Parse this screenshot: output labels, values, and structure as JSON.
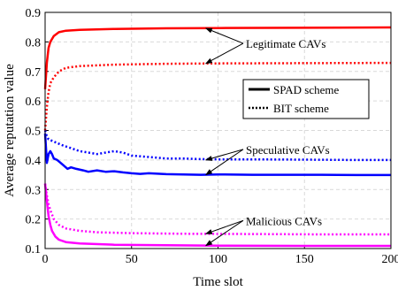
{
  "chart_data": {
    "type": "line",
    "xlabel": "Time slot",
    "ylabel": "Average reputation value",
    "xlim": [
      0,
      200
    ],
    "ylim": [
      0.1,
      0.9
    ],
    "xticks": [
      0,
      50,
      100,
      150,
      200
    ],
    "yticks": [
      0.1,
      0.2,
      0.3,
      0.4,
      0.5,
      0.6,
      0.7,
      0.8,
      0.9
    ],
    "grid": true,
    "legend": {
      "placement": "right-middle",
      "entries": [
        {
          "label": "SPAD scheme",
          "style": "solid"
        },
        {
          "label": "BIT scheme",
          "style": "dotted"
        }
      ]
    },
    "colors": {
      "legitimate": "#ff0000",
      "speculative": "#0000ff",
      "malicious": "#ff00ff"
    },
    "series": [
      {
        "group": "legitimate",
        "scheme": "SPAD",
        "color": "#ff0000",
        "style": "solid",
        "points": [
          [
            0,
            0.64
          ],
          [
            1,
            0.73
          ],
          [
            2,
            0.78
          ],
          [
            3,
            0.8
          ],
          [
            5,
            0.82
          ],
          [
            8,
            0.833
          ],
          [
            12,
            0.838
          ],
          [
            20,
            0.841
          ],
          [
            40,
            0.844
          ],
          [
            70,
            0.846
          ],
          [
            100,
            0.847
          ],
          [
            150,
            0.848
          ],
          [
            200,
            0.849
          ]
        ]
      },
      {
        "group": "legitimate",
        "scheme": "BIT",
        "color": "#ff0000",
        "style": "dotted",
        "points": [
          [
            0,
            0.5
          ],
          [
            1,
            0.58
          ],
          [
            2,
            0.63
          ],
          [
            3,
            0.66
          ],
          [
            5,
            0.68
          ],
          [
            8,
            0.7
          ],
          [
            12,
            0.712
          ],
          [
            20,
            0.718
          ],
          [
            40,
            0.723
          ],
          [
            70,
            0.726
          ],
          [
            100,
            0.727
          ],
          [
            150,
            0.728
          ],
          [
            200,
            0.729
          ]
        ]
      },
      {
        "group": "speculative",
        "scheme": "SPAD",
        "color": "#0000ff",
        "style": "solid",
        "points": [
          [
            0,
            0.49
          ],
          [
            1,
            0.39
          ],
          [
            2,
            0.42
          ],
          [
            3,
            0.43
          ],
          [
            4,
            0.42
          ],
          [
            5,
            0.405
          ],
          [
            7,
            0.4
          ],
          [
            9,
            0.39
          ],
          [
            11,
            0.38
          ],
          [
            13,
            0.37
          ],
          [
            15,
            0.375
          ],
          [
            18,
            0.37
          ],
          [
            22,
            0.365
          ],
          [
            25,
            0.36
          ],
          [
            30,
            0.365
          ],
          [
            35,
            0.36
          ],
          [
            40,
            0.362
          ],
          [
            45,
            0.358
          ],
          [
            50,
            0.355
          ],
          [
            55,
            0.353
          ],
          [
            60,
            0.355
          ],
          [
            70,
            0.352
          ],
          [
            80,
            0.351
          ],
          [
            90,
            0.35
          ],
          [
            100,
            0.351
          ],
          [
            120,
            0.35
          ],
          [
            140,
            0.35
          ],
          [
            160,
            0.35
          ],
          [
            180,
            0.349
          ],
          [
            200,
            0.349
          ]
        ]
      },
      {
        "group": "speculative",
        "scheme": "BIT",
        "color": "#0000ff",
        "style": "dotted",
        "points": [
          [
            0,
            0.5
          ],
          [
            1,
            0.48
          ],
          [
            2,
            0.47
          ],
          [
            4,
            0.465
          ],
          [
            6,
            0.46
          ],
          [
            10,
            0.45
          ],
          [
            15,
            0.44
          ],
          [
            20,
            0.43
          ],
          [
            25,
            0.425
          ],
          [
            30,
            0.42
          ],
          [
            35,
            0.425
          ],
          [
            40,
            0.43
          ],
          [
            45,
            0.425
          ],
          [
            50,
            0.415
          ],
          [
            60,
            0.41
          ],
          [
            70,
            0.405
          ],
          [
            80,
            0.405
          ],
          [
            90,
            0.403
          ],
          [
            100,
            0.402
          ],
          [
            120,
            0.402
          ],
          [
            150,
            0.401
          ],
          [
            180,
            0.4
          ],
          [
            200,
            0.4
          ]
        ]
      },
      {
        "group": "malicious",
        "scheme": "SPAD",
        "color": "#ff00ff",
        "style": "solid",
        "points": [
          [
            0,
            0.32
          ],
          [
            1,
            0.26
          ],
          [
            2,
            0.21
          ],
          [
            3,
            0.18
          ],
          [
            4,
            0.16
          ],
          [
            6,
            0.14
          ],
          [
            8,
            0.13
          ],
          [
            12,
            0.122
          ],
          [
            20,
            0.117
          ],
          [
            40,
            0.113
          ],
          [
            70,
            0.111
          ],
          [
            100,
            0.11
          ],
          [
            150,
            0.109
          ],
          [
            200,
            0.109
          ]
        ]
      },
      {
        "group": "malicious",
        "scheme": "BIT",
        "color": "#ff00ff",
        "style": "dotted",
        "points": [
          [
            0,
            0.32
          ],
          [
            1,
            0.28
          ],
          [
            2,
            0.25
          ],
          [
            3,
            0.23
          ],
          [
            5,
            0.2
          ],
          [
            8,
            0.18
          ],
          [
            12,
            0.168
          ],
          [
            20,
            0.16
          ],
          [
            30,
            0.155
          ],
          [
            50,
            0.152
          ],
          [
            80,
            0.15
          ],
          [
            120,
            0.149
          ],
          [
            160,
            0.148
          ],
          [
            200,
            0.148
          ]
        ]
      }
    ],
    "annotations": [
      {
        "label": "Legitimate CAVs",
        "group": "legitimate",
        "arrows_to": [
          [
            93,
            0.846
          ],
          [
            93,
            0.727
          ]
        ]
      },
      {
        "label": "Speculative CAVs",
        "group": "speculative",
        "arrows_to": [
          [
            93,
            0.4
          ],
          [
            93,
            0.35
          ]
        ]
      },
      {
        "label": "Malicious CAVs",
        "group": "malicious",
        "arrows_to": [
          [
            93,
            0.15
          ],
          [
            93,
            0.11
          ]
        ]
      }
    ]
  }
}
